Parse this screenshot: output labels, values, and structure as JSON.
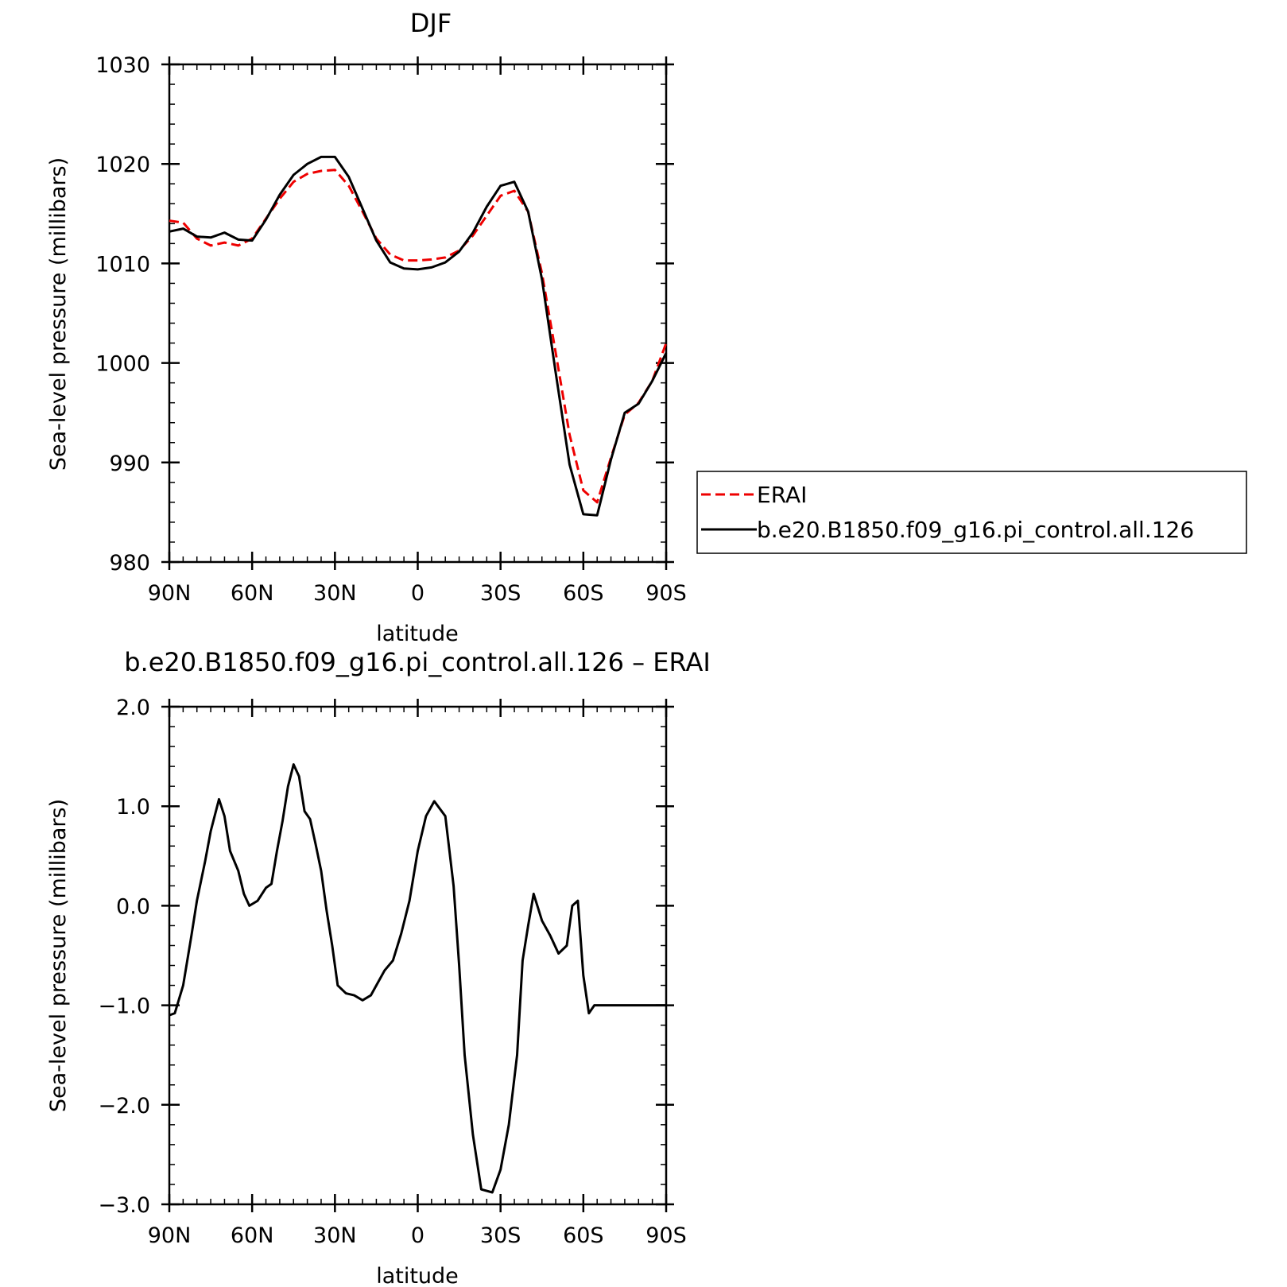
{
  "chart_data": [
    {
      "type": "line",
      "title": "DJF",
      "xlabel": "latitude",
      "ylabel": "Sea-level pressure (millibars)",
      "xlim": [
        90,
        -90
      ],
      "ylim": [
        980,
        1030
      ],
      "xticks": [
        90,
        60,
        30,
        0,
        -30,
        -60,
        -90
      ],
      "xtick_labels": [
        "90N",
        "60N",
        "30N",
        "0",
        "30S",
        "60S",
        "90S"
      ],
      "yticks": [
        980,
        990,
        1000,
        1010,
        1020,
        1030
      ],
      "ytick_labels": [
        "980",
        "990",
        "1000",
        "1010",
        "1020",
        "1030"
      ],
      "grid": false,
      "legend_position": "right",
      "series": [
        {
          "name": "ERAI",
          "color": "#ee0000",
          "dash": "dashed",
          "x": [
            90,
            85,
            80,
            75,
            70,
            65,
            60,
            55,
            50,
            45,
            40,
            35,
            30,
            25,
            20,
            15,
            10,
            5,
            0,
            -5,
            -10,
            -15,
            -20,
            -25,
            -30,
            -35,
            -40,
            -45,
            -50,
            -55,
            -60,
            -65,
            -70,
            -75,
            -80,
            -85,
            -90
          ],
          "y": [
            1014.3,
            1014.1,
            1012.5,
            1011.8,
            1012.1,
            1011.8,
            1012.5,
            1014.5,
            1016.5,
            1018.2,
            1019.0,
            1019.3,
            1019.4,
            1017.8,
            1015.2,
            1012.5,
            1010.9,
            1010.3,
            1010.3,
            1010.4,
            1010.6,
            1011.3,
            1012.8,
            1014.8,
            1016.8,
            1017.3,
            1015.2,
            1009.0,
            1001.0,
            992.8,
            987.2,
            986.0,
            990.5,
            994.8,
            996.0,
            998.2,
            1002.0
          ]
        },
        {
          "name": "b.e20.B1850.f09_g16.pi_control.all.126",
          "color": "#000000",
          "dash": "solid",
          "x": [
            90,
            85,
            80,
            75,
            70,
            65,
            60,
            55,
            50,
            45,
            40,
            35,
            30,
            25,
            20,
            15,
            10,
            5,
            0,
            -5,
            -10,
            -15,
            -20,
            -25,
            -30,
            -35,
            -40,
            -45,
            -50,
            -55,
            -60,
            -65,
            -70,
            -75,
            -80,
            -85,
            -90
          ],
          "y": [
            1013.2,
            1013.5,
            1012.7,
            1012.6,
            1013.1,
            1012.4,
            1012.3,
            1014.4,
            1016.9,
            1018.9,
            1020.0,
            1020.7,
            1020.7,
            1018.7,
            1015.5,
            1012.3,
            1010.1,
            1009.5,
            1009.4,
            1009.6,
            1010.1,
            1011.2,
            1013.1,
            1015.7,
            1017.8,
            1018.2,
            1015.2,
            1008.4,
            999.0,
            989.8,
            984.8,
            984.7,
            990.3,
            995.0,
            995.9,
            998.2,
            1001.0
          ]
        }
      ]
    },
    {
      "type": "line",
      "title": "b.e20.B1850.f09_g16.pi_control.all.126  –  ERAI",
      "xlabel": "latitude",
      "ylabel": "Sea-level pressure (millibars)",
      "xlim": [
        90,
        -90
      ],
      "ylim": [
        -3.0,
        2.0
      ],
      "xticks": [
        90,
        60,
        30,
        0,
        -30,
        -60,
        -90
      ],
      "xtick_labels": [
        "90N",
        "60N",
        "30N",
        "0",
        "30S",
        "60S",
        "90S"
      ],
      "yticks": [
        -3.0,
        -2.0,
        -1.0,
        0.0,
        1.0,
        2.0
      ],
      "ytick_labels": [
        "−3.0",
        "−2.0",
        "−1.0",
        "0.0",
        "1.0",
        "2.0"
      ],
      "grid": false,
      "series": [
        {
          "color": "#000000",
          "dash": "solid",
          "x": [
            90,
            88,
            85,
            82,
            80,
            77,
            75,
            72,
            70,
            68,
            65,
            63,
            61,
            58,
            55,
            53,
            51,
            49,
            47,
            45,
            43,
            41,
            39,
            37,
            35,
            33,
            31,
            29,
            26,
            23,
            20,
            17,
            15,
            12,
            9,
            6,
            3,
            0,
            -3,
            -6,
            -10,
            -13,
            -15,
            -17,
            -20,
            -23,
            -27,
            -30,
            -33,
            -36,
            -38,
            -40,
            -42,
            -45,
            -48,
            -51,
            -54,
            -56,
            -58,
            -60,
            -62,
            -64,
            -66,
            -68,
            -70,
            -72,
            -74,
            -76,
            -78,
            -80,
            -82,
            -84,
            -86,
            -88,
            -90
          ],
          "y": [
            -1.1,
            -1.08,
            -0.8,
            -0.3,
            0.05,
            0.45,
            0.75,
            1.07,
            0.9,
            0.55,
            0.35,
            0.12,
            0.0,
            0.05,
            0.18,
            0.22,
            0.55,
            0.85,
            1.2,
            1.42,
            1.3,
            0.95,
            0.87,
            0.62,
            0.35,
            -0.05,
            -0.4,
            -0.8,
            -0.88,
            -0.9,
            -0.95,
            -0.9,
            -0.8,
            -0.65,
            -0.55,
            -0.28,
            0.05,
            0.55,
            0.9,
            1.05,
            0.9,
            0.2,
            -0.6,
            -1.5,
            -2.3,
            -2.85,
            -2.88,
            -2.65,
            -2.2,
            -1.5,
            -0.55,
            -0.2,
            0.12,
            -0.15,
            -0.3,
            -0.48,
            -0.4,
            0.0,
            0.05,
            -0.7,
            -1.08,
            -1.0,
            -1.0,
            -1.0,
            -1.0,
            -1.0,
            -1.0,
            -1.0,
            -1.0,
            -1.0,
            -1.0,
            -1.0,
            -1.0,
            -1.0,
            -1.0
          ]
        }
      ]
    }
  ]
}
